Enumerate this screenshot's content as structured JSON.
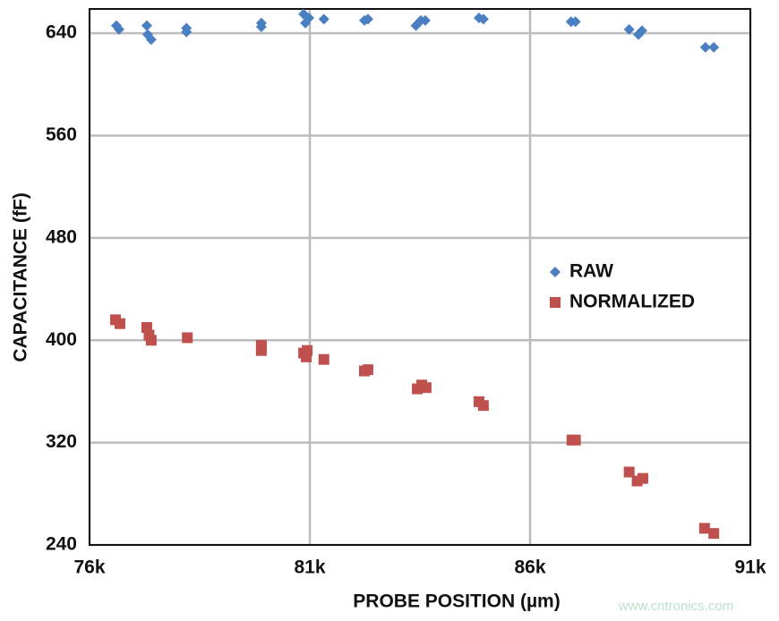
{
  "chart_data": {
    "type": "scatter",
    "xlabel": "PROBE POSITION (µm)",
    "ylabel": "CAPACITANCE (fF)",
    "xlim": [
      76000,
      91000
    ],
    "xticks": [
      {
        "value": 76000,
        "label": "76k"
      },
      {
        "value": 81000,
        "label": "81k"
      },
      {
        "value": 86000,
        "label": "86k"
      },
      {
        "value": 91000,
        "label": "91k"
      }
    ],
    "ylim": [
      240,
      659
    ],
    "yticks": [
      240,
      320,
      400,
      480,
      560,
      640
    ],
    "grid": true,
    "legend": "right",
    "watermark": "www.cntronics.com",
    "series": [
      {
        "name": "RAW",
        "color": "#4a7fc1",
        "marker": "diamond",
        "x": [
          76610,
          76670,
          77300,
          77320,
          77400,
          78200,
          78200,
          79900,
          79900,
          80860,
          80900,
          80980,
          81320,
          82240,
          82320,
          83410,
          83520,
          83620,
          84840,
          84940,
          86930,
          87030,
          88250,
          88460,
          88540,
          89980,
          90170
        ],
        "values": [
          646,
          643,
          646,
          639,
          635,
          644,
          641,
          648,
          645,
          655,
          648,
          652,
          651,
          650,
          651,
          646,
          650,
          650,
          652,
          651,
          649,
          649,
          643,
          639,
          642,
          629,
          629
        ]
      },
      {
        "name": "NORMALIZED",
        "color": "#c0504d",
        "marker": "square",
        "x": [
          76590,
          76690,
          77300,
          77350,
          77400,
          78220,
          79900,
          79900,
          80860,
          80940,
          80920,
          81320,
          82240,
          82320,
          83440,
          83540,
          83640,
          84840,
          84940,
          86950,
          87030,
          88250,
          88430,
          88560,
          89960,
          90170
        ],
        "values": [
          416,
          413,
          410,
          404,
          400,
          402,
          396,
          392,
          390,
          392,
          387,
          385,
          376,
          377,
          362,
          365,
          363,
          352,
          349,
          322,
          322,
          297,
          290,
          292,
          253,
          249
        ]
      }
    ]
  }
}
